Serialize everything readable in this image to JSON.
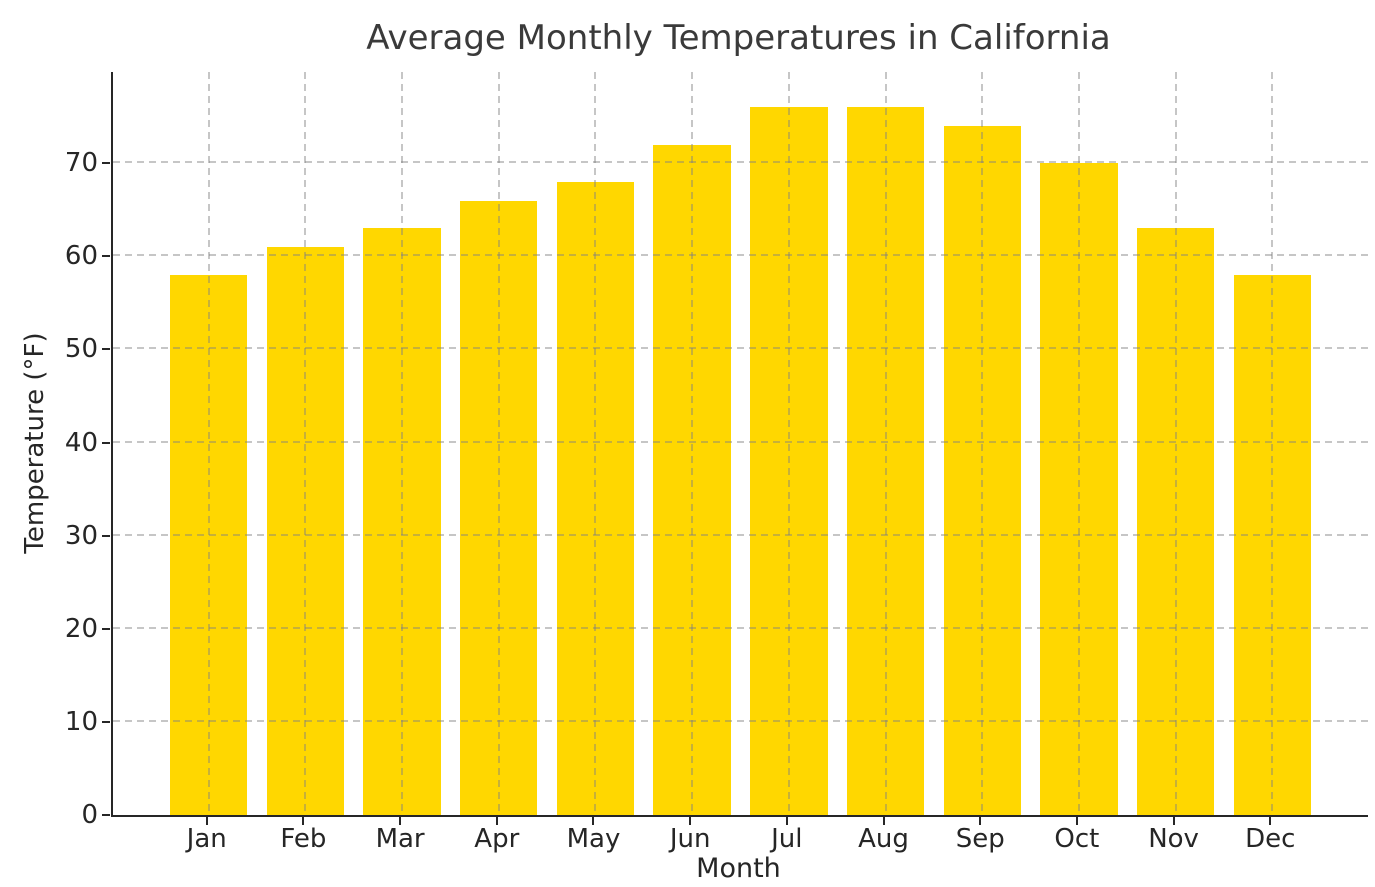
{
  "chart_data": {
    "type": "bar",
    "title": "Average Monthly Temperatures in California",
    "xlabel": "Month",
    "ylabel": "Temperature (°F)",
    "categories": [
      "Jan",
      "Feb",
      "Mar",
      "Apr",
      "May",
      "Jun",
      "Jul",
      "Aug",
      "Sep",
      "Oct",
      "Nov",
      "Dec"
    ],
    "values": [
      58,
      61,
      63,
      66,
      68,
      72,
      76,
      76,
      74,
      70,
      63,
      58
    ],
    "yticks": [
      0,
      10,
      20,
      30,
      40,
      50,
      60,
      70
    ],
    "ylim": [
      0,
      79.8
    ],
    "bar_width_fraction": 0.8,
    "grid": {
      "style": "dashed",
      "axes": "both",
      "above_bars": true
    },
    "legend": "none",
    "spines": [
      "left",
      "bottom"
    ],
    "colors": {
      "bar": "#FFD700",
      "grid": "#c8c8c8",
      "spine": "#262626",
      "title_text": "#3a3a3a",
      "tick_text": "#262626",
      "background": "#ffffff"
    }
  }
}
